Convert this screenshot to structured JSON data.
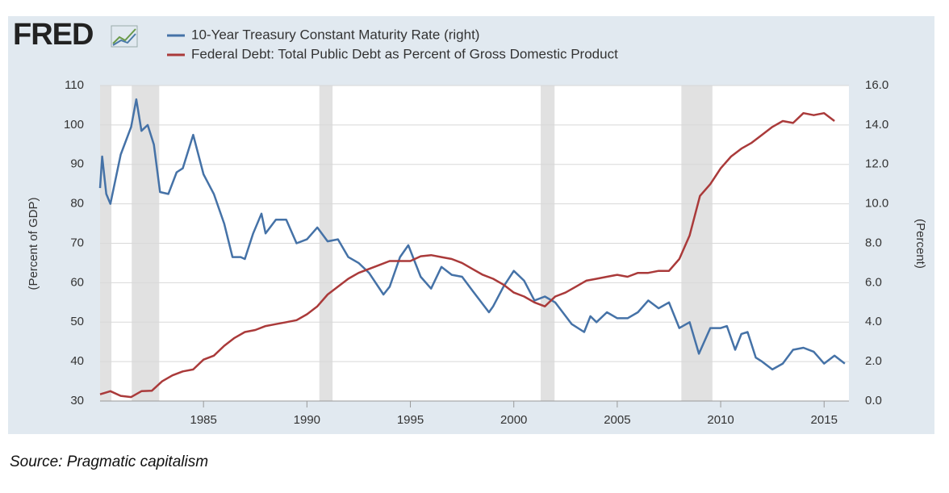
{
  "chart_data": {
    "type": "line",
    "logo": "FRED",
    "source": "Source: Pragmatic capitalism",
    "ylabel": "(Percent of GDP)",
    "y2label": "(Percent)",
    "xlim": [
      1980,
      2016.2
    ],
    "xticks": [
      1985,
      1990,
      1995,
      2000,
      2005,
      2010,
      2015
    ],
    "ylim": [
      30,
      110
    ],
    "yticks": [
      30,
      40,
      50,
      60,
      70,
      80,
      90,
      100,
      110
    ],
    "y2lim": [
      0,
      16
    ],
    "y2ticks": [
      {
        "value": 0,
        "label": "0.0"
      },
      {
        "value": 2,
        "label": "2.0"
      },
      {
        "value": 4,
        "label": "4.0"
      },
      {
        "value": 6,
        "label": "6.0"
      },
      {
        "value": 8,
        "label": "8.0"
      },
      {
        "value": 10,
        "label": "10.0"
      },
      {
        "value": 12,
        "label": "12.0"
      },
      {
        "value": 14,
        "label": "14.0"
      },
      {
        "value": 16,
        "label": "16.0"
      }
    ],
    "grid": true,
    "shaded_periods": [
      [
        1980,
        1980.55
      ],
      [
        1981.53,
        1982.86
      ],
      [
        1990.6,
        1991.24
      ],
      [
        2001.3,
        2001.97
      ],
      [
        2008.1,
        2009.6
      ]
    ],
    "series": [
      {
        "name": "10-Year Treasury Constant Maturity Rate (right)",
        "color": "#4572a7",
        "axis": "y2",
        "x": [
          1980.0,
          1980.1,
          1980.3,
          1980.5,
          1981,
          1981.5,
          1981.75,
          1982,
          1982.3,
          1982.6,
          1982.9,
          1983.3,
          1983.7,
          1984,
          1984.5,
          1985,
          1985.5,
          1986,
          1986.4,
          1986.8,
          1987,
          1987.4,
          1987.8,
          1988,
          1988.5,
          1989,
          1989.5,
          1990,
          1990.5,
          1991,
          1991.5,
          1992,
          1992.5,
          1993,
          1993.7,
          1994,
          1994.5,
          1994.9,
          1995.5,
          1996,
          1996.5,
          1997,
          1997.5,
          1998,
          1998.8,
          1999,
          1999.5,
          2000,
          2000.5,
          2001,
          2001.5,
          2002,
          2002.8,
          2003.4,
          2003.7,
          2004,
          2004.5,
          2005,
          2005.5,
          2006,
          2006.5,
          2007,
          2007.5,
          2008,
          2008.5,
          2008.95,
          2009.5,
          2010,
          2010.3,
          2010.7,
          2011,
          2011.3,
          2011.7,
          2012,
          2012.5,
          2013,
          2013.5,
          2014,
          2014.5,
          2015,
          2015.5,
          2016
        ],
        "values": [
          10.8,
          12.4,
          10.5,
          10.0,
          12.5,
          13.9,
          15.3,
          13.7,
          14.0,
          13.0,
          10.6,
          10.5,
          11.6,
          11.8,
          13.5,
          11.5,
          10.5,
          9.0,
          7.3,
          7.3,
          7.2,
          8.5,
          9.5,
          8.5,
          9.2,
          9.2,
          8.0,
          8.2,
          8.8,
          8.1,
          8.2,
          7.3,
          7.0,
          6.5,
          5.4,
          5.8,
          7.3,
          7.9,
          6.3,
          5.7,
          6.8,
          6.4,
          6.3,
          5.6,
          4.5,
          4.8,
          5.8,
          6.6,
          6.1,
          5.1,
          5.3,
          5.0,
          3.9,
          3.5,
          4.3,
          4.0,
          4.5,
          4.2,
          4.2,
          4.5,
          5.1,
          4.7,
          5.0,
          3.7,
          4.0,
          2.4,
          3.7,
          3.7,
          3.8,
          2.6,
          3.4,
          3.5,
          2.2,
          2.0,
          1.6,
          1.9,
          2.6,
          2.7,
          2.5,
          1.9,
          2.3,
          1.9
        ]
      },
      {
        "name": "Federal Debt: Total Public Debt as Percent of Gross Domestic Product",
        "color": "#aa3a3a",
        "x": [
          1980,
          1980.5,
          1981,
          1981.5,
          1982,
          1982.5,
          1983,
          1983.5,
          1984,
          1984.5,
          1985,
          1985.5,
          1986,
          1986.5,
          1987,
          1987.5,
          1988,
          1988.5,
          1989,
          1989.5,
          1990,
          1990.5,
          1991,
          1991.5,
          1992,
          1992.5,
          1993,
          1993.5,
          1994,
          1994.5,
          1995,
          1995.5,
          1996,
          1996.5,
          1997,
          1997.5,
          1998,
          1998.5,
          1999,
          1999.5,
          2000,
          2000.5,
          2001,
          2001.5,
          2002,
          2002.5,
          2003,
          2003.5,
          2004,
          2004.5,
          2005,
          2005.5,
          2006,
          2006.5,
          2007,
          2007.5,
          2008,
          2008.5,
          2009,
          2009.5,
          2010,
          2010.5,
          2011,
          2011.5,
          2012,
          2012.5,
          2013,
          2013.5,
          2014,
          2014.5,
          2015,
          2015.5
        ],
        "values": [
          31.7,
          32.5,
          31.3,
          31.0,
          32.5,
          32.6,
          35,
          36.5,
          37.5,
          38,
          40.5,
          41.5,
          44,
          46,
          47.5,
          48,
          49,
          49.5,
          50,
          50.5,
          52,
          54,
          57,
          59,
          61,
          62.5,
          63.5,
          64.5,
          65.5,
          65.5,
          65.5,
          66.7,
          67,
          66.5,
          66,
          65,
          63.5,
          62,
          61,
          59.5,
          57.5,
          56.5,
          55,
          54,
          56.5,
          57.5,
          59,
          60.5,
          61,
          61.5,
          62,
          61.5,
          62.5,
          62.5,
          63,
          63,
          66,
          72,
          82,
          85,
          89,
          92,
          94,
          95.5,
          97.5,
          99.5,
          101,
          100.5,
          103,
          102.5,
          103,
          101
        ]
      }
    ]
  }
}
